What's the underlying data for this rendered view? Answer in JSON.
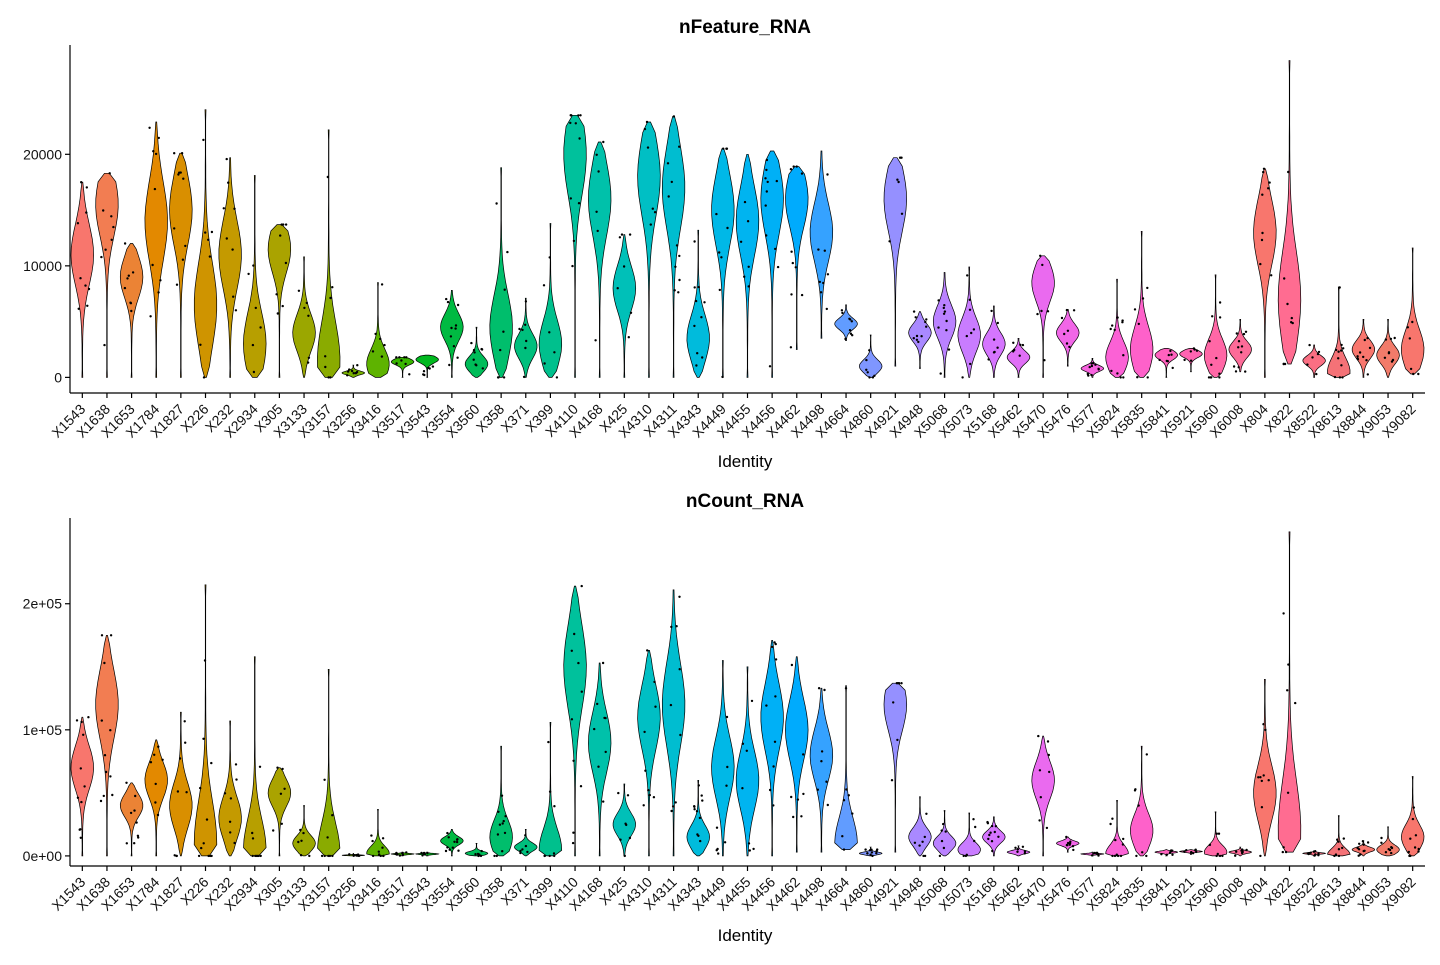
{
  "chart_data": [
    {
      "type": "violin",
      "title": "nFeature_RNA",
      "xlabel": "Identity",
      "ylabel": "",
      "ylim": [
        -1400,
        29800
      ],
      "y_ticks": [
        0,
        10000,
        20000
      ],
      "y_tick_labels": [
        "0",
        "10000",
        "20000"
      ],
      "categories": [
        "X1543",
        "X1638",
        "X1653",
        "X1784",
        "X1827",
        "X226",
        "X232",
        "X2934",
        "X305",
        "X3133",
        "X3157",
        "X3256",
        "X3416",
        "X3517",
        "X3543",
        "X3554",
        "X3560",
        "X358",
        "X371",
        "X399",
        "X4110",
        "X4168",
        "X425",
        "X4310",
        "X4311",
        "X4343",
        "X4449",
        "X4455",
        "X4456",
        "X4462",
        "X4498",
        "X4664",
        "X4860",
        "X4921",
        "X4948",
        "X5068",
        "X5073",
        "X5168",
        "X5462",
        "X5470",
        "X5476",
        "X577",
        "X5824",
        "X5835",
        "X5841",
        "X5921",
        "X5960",
        "X6008",
        "X804",
        "X822",
        "X8522",
        "X8613",
        "X8844",
        "X9053",
        "X9082"
      ],
      "colors": [
        "#F8766D",
        "#F27D52",
        "#EB8335",
        "#E38900",
        "#D98F00",
        "#CF9400",
        "#C49A00",
        "#B79F00",
        "#AAA300",
        "#9BA700",
        "#8AAB00",
        "#77AF00",
        "#5EB300",
        "#39B600",
        "#00B81F",
        "#00BA42",
        "#00BC59",
        "#00BE6C",
        "#00BF7D",
        "#00C08D",
        "#00C19C",
        "#00C1AA",
        "#00C0B8",
        "#00BFC4",
        "#00BDD0",
        "#00BBDC",
        "#00B8E7",
        "#00B4F0",
        "#00B0F6",
        "#00ABFD",
        "#35A2FF",
        "#619CFF",
        "#7F96FF",
        "#9590FF",
        "#A989FF",
        "#BA82FF",
        "#C97CFF",
        "#D575FE",
        "#E06FF6",
        "#EA6AEF",
        "#F166E7",
        "#F763DF",
        "#FB61D5",
        "#FE61CA",
        "#FF62BE",
        "#FF64B2",
        "#FF67A6",
        "#FC6B98",
        "#F8766D",
        "#FF6C91",
        "#FA6F83",
        "#F47277",
        "#F8766D",
        "#F27B6A",
        "#F8766D"
      ],
      "series_stats": [
        {
          "min": 0,
          "max": 17500,
          "mode": 11000
        },
        {
          "min": 0,
          "max": 18300,
          "mode": 15500
        },
        {
          "min": 0,
          "max": 12000,
          "mode": 9000
        },
        {
          "min": 0,
          "max": 22900,
          "mode": 14000
        },
        {
          "min": 0,
          "max": 20100,
          "mode": 15000
        },
        {
          "min": 0,
          "max": 24000,
          "mode": 6500
        },
        {
          "min": 0,
          "max": 19700,
          "mode": 11000
        },
        {
          "min": 0,
          "max": 18100,
          "mode": 3000
        },
        {
          "min": 0,
          "max": 13700,
          "mode": 11500
        },
        {
          "min": 0,
          "max": 10800,
          "mode": 4000
        },
        {
          "min": 0,
          "max": 22200,
          "mode": 1500
        },
        {
          "min": 0,
          "max": 1100,
          "mode": 400
        },
        {
          "min": 0,
          "max": 8500,
          "mode": 1200
        },
        {
          "min": 0,
          "max": 1800,
          "mode": 1400
        },
        {
          "min": 0,
          "max": 2000,
          "mode": 1600
        },
        {
          "min": 0,
          "max": 7800,
          "mode": 4500
        },
        {
          "min": 0,
          "max": 4500,
          "mode": 1200
        },
        {
          "min": 0,
          "max": 18800,
          "mode": 4500
        },
        {
          "min": 0,
          "max": 7100,
          "mode": 2800
        },
        {
          "min": 0,
          "max": 13800,
          "mode": 3000
        },
        {
          "min": 0,
          "max": 23500,
          "mode": 20000
        },
        {
          "min": 0,
          "max": 21100,
          "mode": 16000
        },
        {
          "min": 0,
          "max": 12800,
          "mode": 8000
        },
        {
          "min": 0,
          "max": 22900,
          "mode": 18000
        },
        {
          "min": 0,
          "max": 23400,
          "mode": 17000
        },
        {
          "min": 0,
          "max": 13200,
          "mode": 3500
        },
        {
          "min": 0,
          "max": 20500,
          "mode": 15000
        },
        {
          "min": 0,
          "max": 20000,
          "mode": 14000
        },
        {
          "min": 0,
          "max": 20300,
          "mode": 16000
        },
        {
          "min": 2500,
          "max": 18900,
          "mode": 16000
        },
        {
          "min": 3500,
          "max": 20300,
          "mode": 13000
        },
        {
          "min": 3300,
          "max": 6500,
          "mode": 4800
        },
        {
          "min": 0,
          "max": 3800,
          "mode": 1000
        },
        {
          "min": 1000,
          "max": 19700,
          "mode": 16000
        },
        {
          "min": 800,
          "max": 5900,
          "mode": 4000
        },
        {
          "min": 0,
          "max": 9400,
          "mode": 5000
        },
        {
          "min": 0,
          "max": 9900,
          "mode": 3800
        },
        {
          "min": 0,
          "max": 6400,
          "mode": 3000
        },
        {
          "min": 0,
          "max": 3500,
          "mode": 1800
        },
        {
          "min": 0,
          "max": 10900,
          "mode": 8500
        },
        {
          "min": 1000,
          "max": 6100,
          "mode": 4000
        },
        {
          "min": 0,
          "max": 1700,
          "mode": 800
        },
        {
          "min": 0,
          "max": 8800,
          "mode": 1800
        },
        {
          "min": 0,
          "max": 13100,
          "mode": 2500
        },
        {
          "min": 0,
          "max": 2600,
          "mode": 2000
        },
        {
          "min": 500,
          "max": 2600,
          "mode": 2100
        },
        {
          "min": 0,
          "max": 9200,
          "mode": 2000
        },
        {
          "min": 500,
          "max": 5200,
          "mode": 2500
        },
        {
          "min": 0,
          "max": 18700,
          "mode": 13000
        },
        {
          "min": 1200,
          "max": 28400,
          "mode": 7000
        },
        {
          "min": 0,
          "max": 2900,
          "mode": 1500
        },
        {
          "min": 0,
          "max": 8100,
          "mode": 500
        },
        {
          "min": 0,
          "max": 5200,
          "mode": 2500
        },
        {
          "min": 0,
          "max": 5200,
          "mode": 2000
        },
        {
          "min": 300,
          "max": 11600,
          "mode": 2500
        }
      ]
    },
    {
      "type": "violin",
      "title": "nCount_RNA",
      "xlabel": "Identity",
      "ylabel": "",
      "ylim": [
        -8000,
        268000
      ],
      "y_ticks": [
        0,
        100000,
        200000
      ],
      "y_tick_labels": [
        "0e+00",
        "1e+05",
        "2e+05"
      ],
      "categories": [
        "X1543",
        "X1638",
        "X1653",
        "X1784",
        "X1827",
        "X226",
        "X232",
        "X2934",
        "X305",
        "X3133",
        "X3157",
        "X3256",
        "X3416",
        "X3517",
        "X3543",
        "X3554",
        "X3560",
        "X358",
        "X371",
        "X399",
        "X4110",
        "X4168",
        "X425",
        "X4310",
        "X4311",
        "X4343",
        "X4449",
        "X4455",
        "X4456",
        "X4462",
        "X4498",
        "X4664",
        "X4860",
        "X4921",
        "X4948",
        "X5068",
        "X5073",
        "X5168",
        "X5462",
        "X5470",
        "X5476",
        "X577",
        "X5824",
        "X5835",
        "X5841",
        "X5921",
        "X5960",
        "X6008",
        "X804",
        "X822",
        "X8522",
        "X8613",
        "X8844",
        "X9053",
        "X9082"
      ],
      "series_stats": [
        {
          "min": 0,
          "max": 110000,
          "mode": 70000
        },
        {
          "min": 0,
          "max": 175000,
          "mode": 120000
        },
        {
          "min": 0,
          "max": 58000,
          "mode": 40000
        },
        {
          "min": 0,
          "max": 92000,
          "mode": 60000
        },
        {
          "min": 0,
          "max": 114000,
          "mode": 40000
        },
        {
          "min": 0,
          "max": 215000,
          "mode": 10000
        },
        {
          "min": 0,
          "max": 107000,
          "mode": 30000
        },
        {
          "min": 0,
          "max": 158000,
          "mode": 5000
        },
        {
          "min": 0,
          "max": 70000,
          "mode": 50000
        },
        {
          "min": 0,
          "max": 40000,
          "mode": 10000
        },
        {
          "min": 0,
          "max": 148000,
          "mode": 3000
        },
        {
          "min": 0,
          "max": 2000,
          "mode": 500
        },
        {
          "min": 0,
          "max": 37000,
          "mode": 2000
        },
        {
          "min": 0,
          "max": 3000,
          "mode": 1500
        },
        {
          "min": 0,
          "max": 3000,
          "mode": 1500
        },
        {
          "min": 0,
          "max": 21000,
          "mode": 12000
        },
        {
          "min": 0,
          "max": 10000,
          "mode": 2000
        },
        {
          "min": 0,
          "max": 87000,
          "mode": 15000
        },
        {
          "min": 0,
          "max": 21000,
          "mode": 7000
        },
        {
          "min": 0,
          "max": 106000,
          "mode": 5000
        },
        {
          "min": 0,
          "max": 214000,
          "mode": 150000
        },
        {
          "min": 0,
          "max": 153000,
          "mode": 90000
        },
        {
          "min": 0,
          "max": 57000,
          "mode": 25000
        },
        {
          "min": 0,
          "max": 163000,
          "mode": 110000
        },
        {
          "min": 0,
          "max": 211000,
          "mode": 120000
        },
        {
          "min": 0,
          "max": 60000,
          "mode": 15000
        },
        {
          "min": 0,
          "max": 155000,
          "mode": 70000
        },
        {
          "min": 0,
          "max": 150000,
          "mode": 60000
        },
        {
          "min": 0,
          "max": 171000,
          "mode": 110000
        },
        {
          "min": 3000,
          "max": 158000,
          "mode": 100000
        },
        {
          "min": 3000,
          "max": 133000,
          "mode": 80000
        },
        {
          "min": 5000,
          "max": 135000,
          "mode": 10000
        },
        {
          "min": 0,
          "max": 7000,
          "mode": 2000
        },
        {
          "min": 3000,
          "max": 137000,
          "mode": 120000
        },
        {
          "min": 0,
          "max": 47000,
          "mode": 15000
        },
        {
          "min": 0,
          "max": 36000,
          "mode": 10000
        },
        {
          "min": 0,
          "max": 34000,
          "mode": 5000
        },
        {
          "min": 0,
          "max": 31000,
          "mode": 15000
        },
        {
          "min": 0,
          "max": 8000,
          "mode": 3000
        },
        {
          "min": 0,
          "max": 95000,
          "mode": 60000
        },
        {
          "min": 3000,
          "max": 15000,
          "mode": 10000
        },
        {
          "min": 0,
          "max": 3000,
          "mode": 1500
        },
        {
          "min": 0,
          "max": 44000,
          "mode": 2000
        },
        {
          "min": 0,
          "max": 87000,
          "mode": 20000
        },
        {
          "min": 0,
          "max": 5000,
          "mode": 3000
        },
        {
          "min": 1000,
          "max": 5000,
          "mode": 3500
        },
        {
          "min": 0,
          "max": 35000,
          "mode": 3000
        },
        {
          "min": 0,
          "max": 7000,
          "mode": 3000
        },
        {
          "min": 0,
          "max": 140000,
          "mode": 50000
        },
        {
          "min": 3000,
          "max": 257000,
          "mode": 20000
        },
        {
          "min": 0,
          "max": 4000,
          "mode": 2000
        },
        {
          "min": 0,
          "max": 32000,
          "mode": 1000
        },
        {
          "min": 0,
          "max": 12000,
          "mode": 5000
        },
        {
          "min": 0,
          "max": 23000,
          "mode": 5000
        },
        {
          "min": 0,
          "max": 63000,
          "mode": 15000
        }
      ]
    }
  ]
}
